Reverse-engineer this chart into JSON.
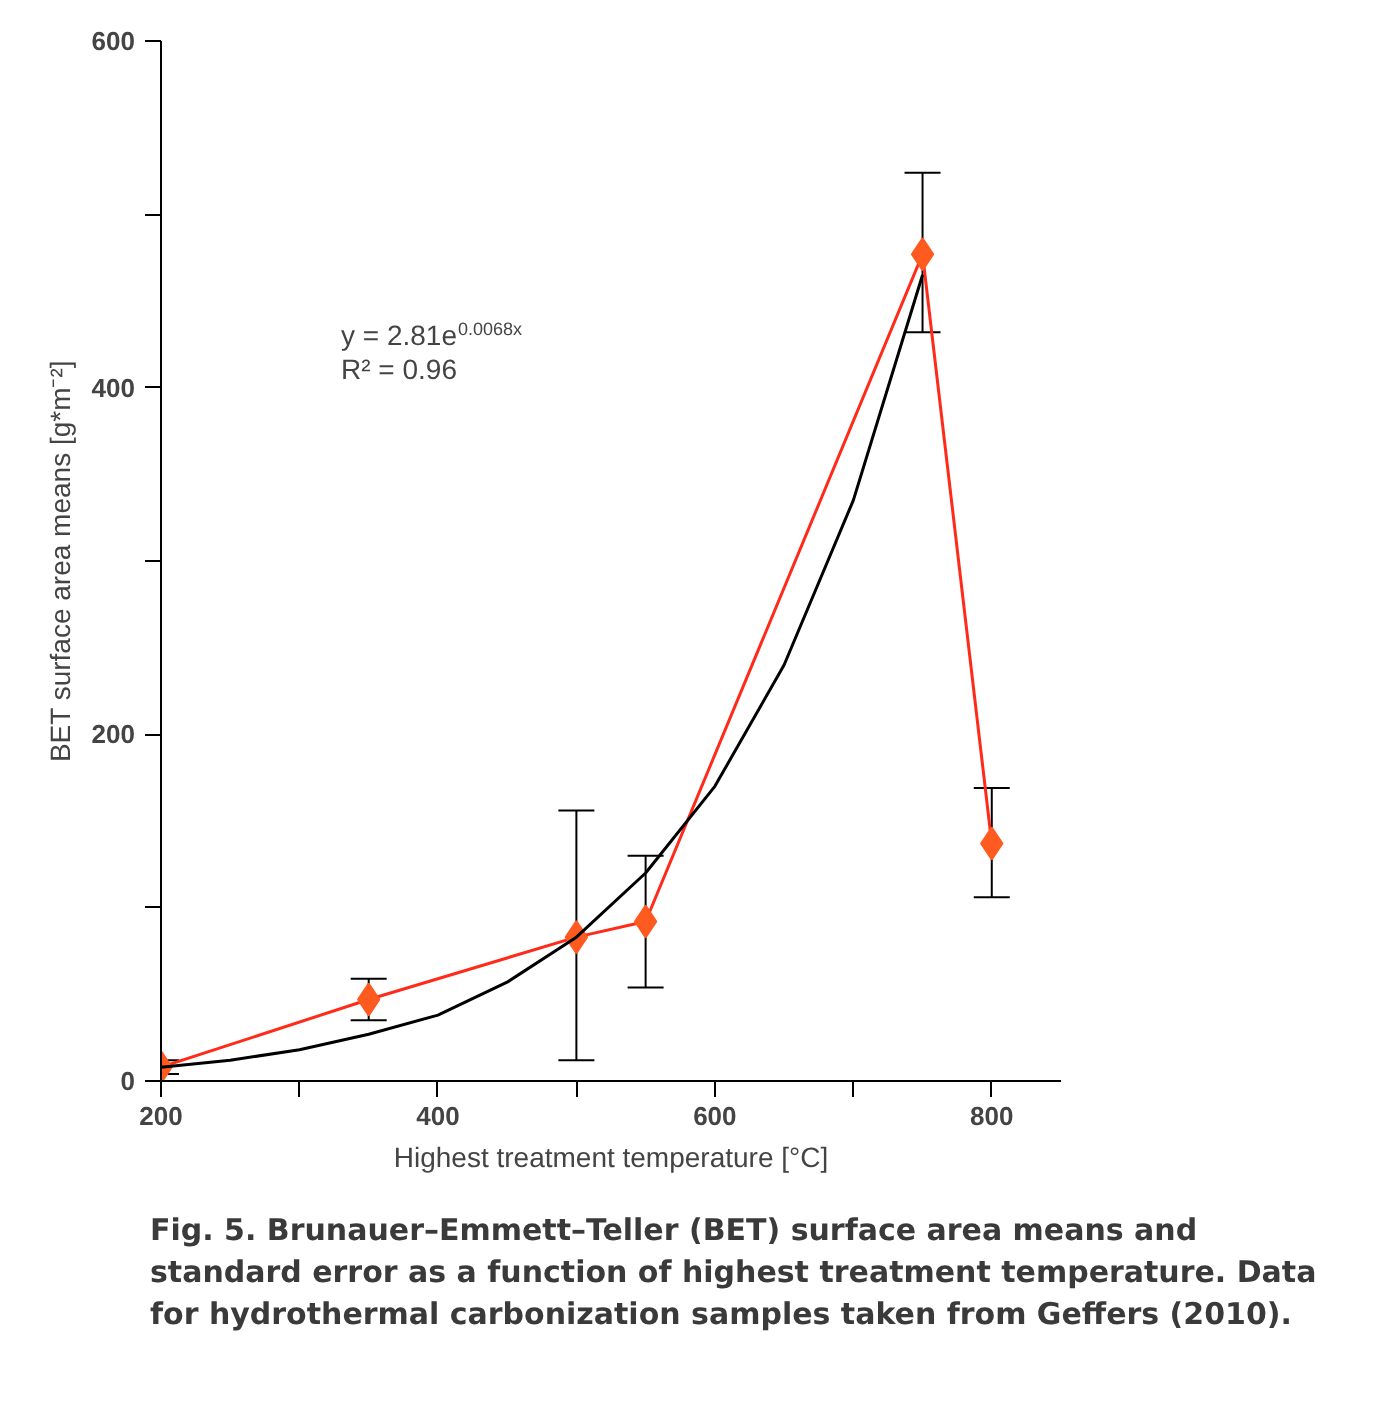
{
  "chart_data": {
    "type": "line",
    "xlabel": "Highest treatment temperature [°C]",
    "ylabel": "BET surface area means [g*m⁻²]",
    "xlim": [
      200,
      850
    ],
    "ylim": [
      0,
      600
    ],
    "xticks": [
      200,
      {
        "value": 300,
        "label": null
      },
      400,
      {
        "value": 500,
        "label": null
      },
      600,
      {
        "value": 700,
        "label": null
      },
      800
    ],
    "yticks": [
      0,
      {
        "value": 100,
        "label": null
      },
      200,
      {
        "value": 300,
        "label": null
      },
      400,
      {
        "value": 500,
        "label": null
      },
      600
    ],
    "grid": false,
    "marker": "diamond",
    "line_style": "solid",
    "x": [
      200,
      350,
      500,
      550,
      750,
      800
    ],
    "series": [
      {
        "color": "#ff2a1a",
        "values": [
          8,
          47,
          83,
          92,
          477,
          137
        ],
        "errors": [
          [
            4,
            12
          ],
          [
            35,
            59
          ],
          [
            12,
            156
          ],
          [
            54,
            130
          ],
          [
            432,
            524
          ],
          [
            106,
            169
          ]
        ]
      },
      {
        "type": "line",
        "marker": "none",
        "color": "#000000",
        "x": [
          200,
          250,
          300,
          350,
          400,
          450,
          500,
          550,
          600,
          650,
          700,
          750
        ],
        "values": [
          8,
          12,
          18,
          27,
          38,
          57,
          83,
          120,
          170,
          240,
          335,
          465
        ]
      }
    ],
    "annotations": [
      "y = 2.81e$^{0.0068x}$",
      "R² = 0.96",
      "Fig. 5. Brunauer–Emmett–Teller (BET) surface area means and standard error as a function of highest treatment temperature. Data for hydrothermal carbonization samples taken from Geffers (2010)."
    ]
  }
}
